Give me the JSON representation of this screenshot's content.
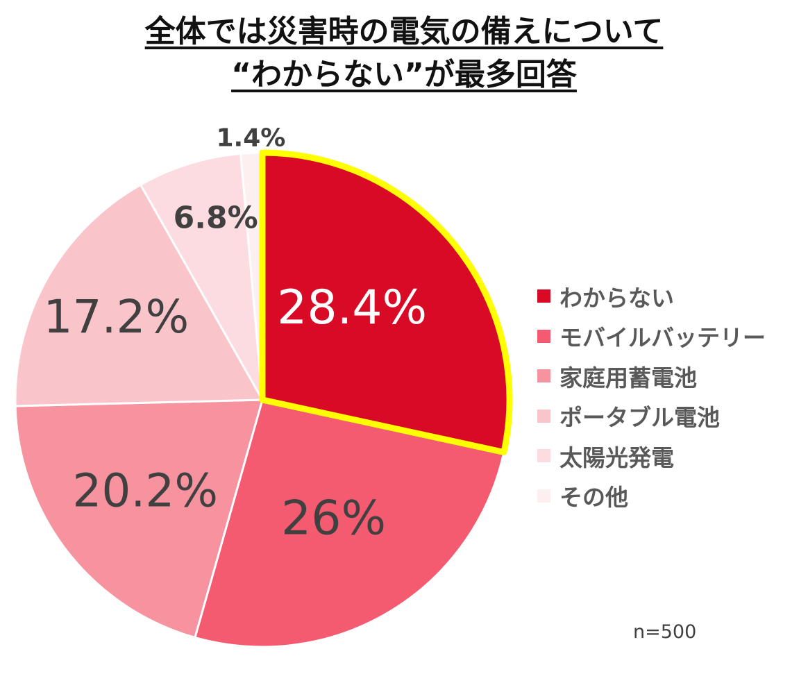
{
  "title_line1": "全体では災害時の電気の備えについて",
  "title_line2": "“わからない”が最多回答",
  "note": "n=500",
  "chart_data": {
    "type": "pie",
    "title": "全体では災害時の電気の備えについて “わからない”が最多回答",
    "unit": "%",
    "slices": [
      {
        "label": "わからない",
        "value": 28.4,
        "display": "28.4%",
        "color": "#D90A26",
        "label_color": "#ffffff",
        "highlight": true,
        "highlight_color": "#FFFF00"
      },
      {
        "label": "モバイルバッテリー",
        "value": 26.0,
        "display": "26%",
        "color": "#F45A70",
        "label_color": "#404040"
      },
      {
        "label": "家庭用蓄電池",
        "value": 20.2,
        "display": "20.2%",
        "color": "#F7939F",
        "label_color": "#404040"
      },
      {
        "label": "ポータブル電池",
        "value": 17.2,
        "display": "17.2%",
        "color": "#FAC4CB",
        "label_color": "#404040"
      },
      {
        "label": "太陽光発電",
        "value": 6.8,
        "display": "6.8%",
        "color": "#FCDCE0",
        "label_color": "#404040"
      },
      {
        "label": "その他",
        "value": 1.4,
        "display": "1.4%",
        "color": "#FDEEF0",
        "label_color": "#404040"
      }
    ],
    "legend_position": "right",
    "start_angle": "12 o'clock",
    "direction": "clockwise"
  }
}
